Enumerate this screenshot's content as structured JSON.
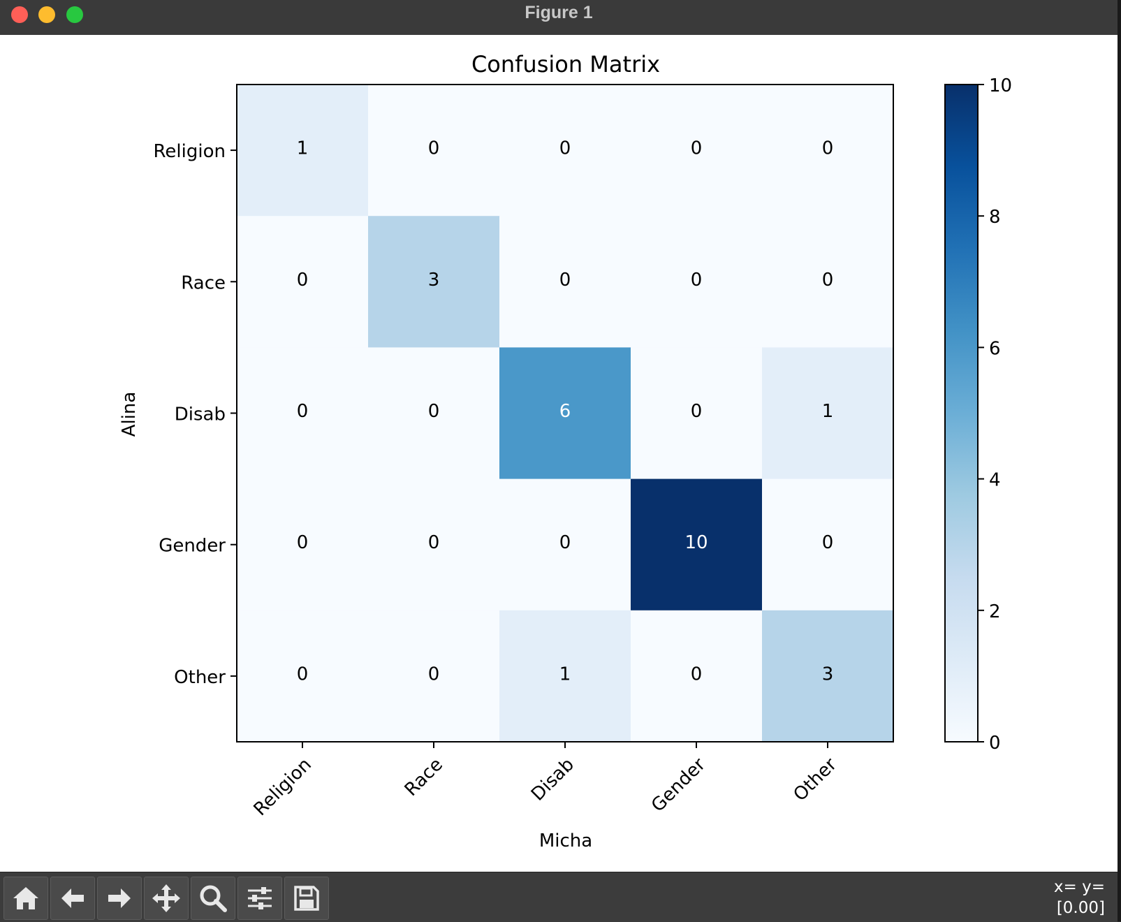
{
  "window": {
    "title": "Figure 1"
  },
  "toolbar": {
    "buttons": [
      {
        "icon": "home-icon"
      },
      {
        "icon": "back-arrow-icon"
      },
      {
        "icon": "forward-arrow-icon"
      },
      {
        "icon": "pan-icon"
      },
      {
        "icon": "zoom-icon"
      },
      {
        "icon": "configure-subplots-icon"
      },
      {
        "icon": "save-icon"
      }
    ],
    "coords_line1": "x= y=",
    "coords_line2": "[0.00]"
  },
  "chart_data": {
    "type": "heatmap",
    "title": "Confusion Matrix",
    "xlabel": "Micha",
    "ylabel": "Alina",
    "x_categories": [
      "Religion",
      "Race",
      "Disab",
      "Gender",
      "Other"
    ],
    "y_categories": [
      "Religion",
      "Race",
      "Disab",
      "Gender",
      "Other"
    ],
    "matrix": [
      [
        1,
        0,
        0,
        0,
        0
      ],
      [
        0,
        3,
        0,
        0,
        0
      ],
      [
        0,
        0,
        6,
        0,
        1
      ],
      [
        0,
        0,
        0,
        10,
        0
      ],
      [
        0,
        0,
        1,
        0,
        3
      ]
    ],
    "colormap": "Blues",
    "colorbar": {
      "min": 0,
      "max": 10,
      "ticks": [
        0,
        2,
        4,
        6,
        8,
        10
      ]
    },
    "colors": {
      "low": "#f7fbff",
      "high": "#08306b"
    }
  }
}
